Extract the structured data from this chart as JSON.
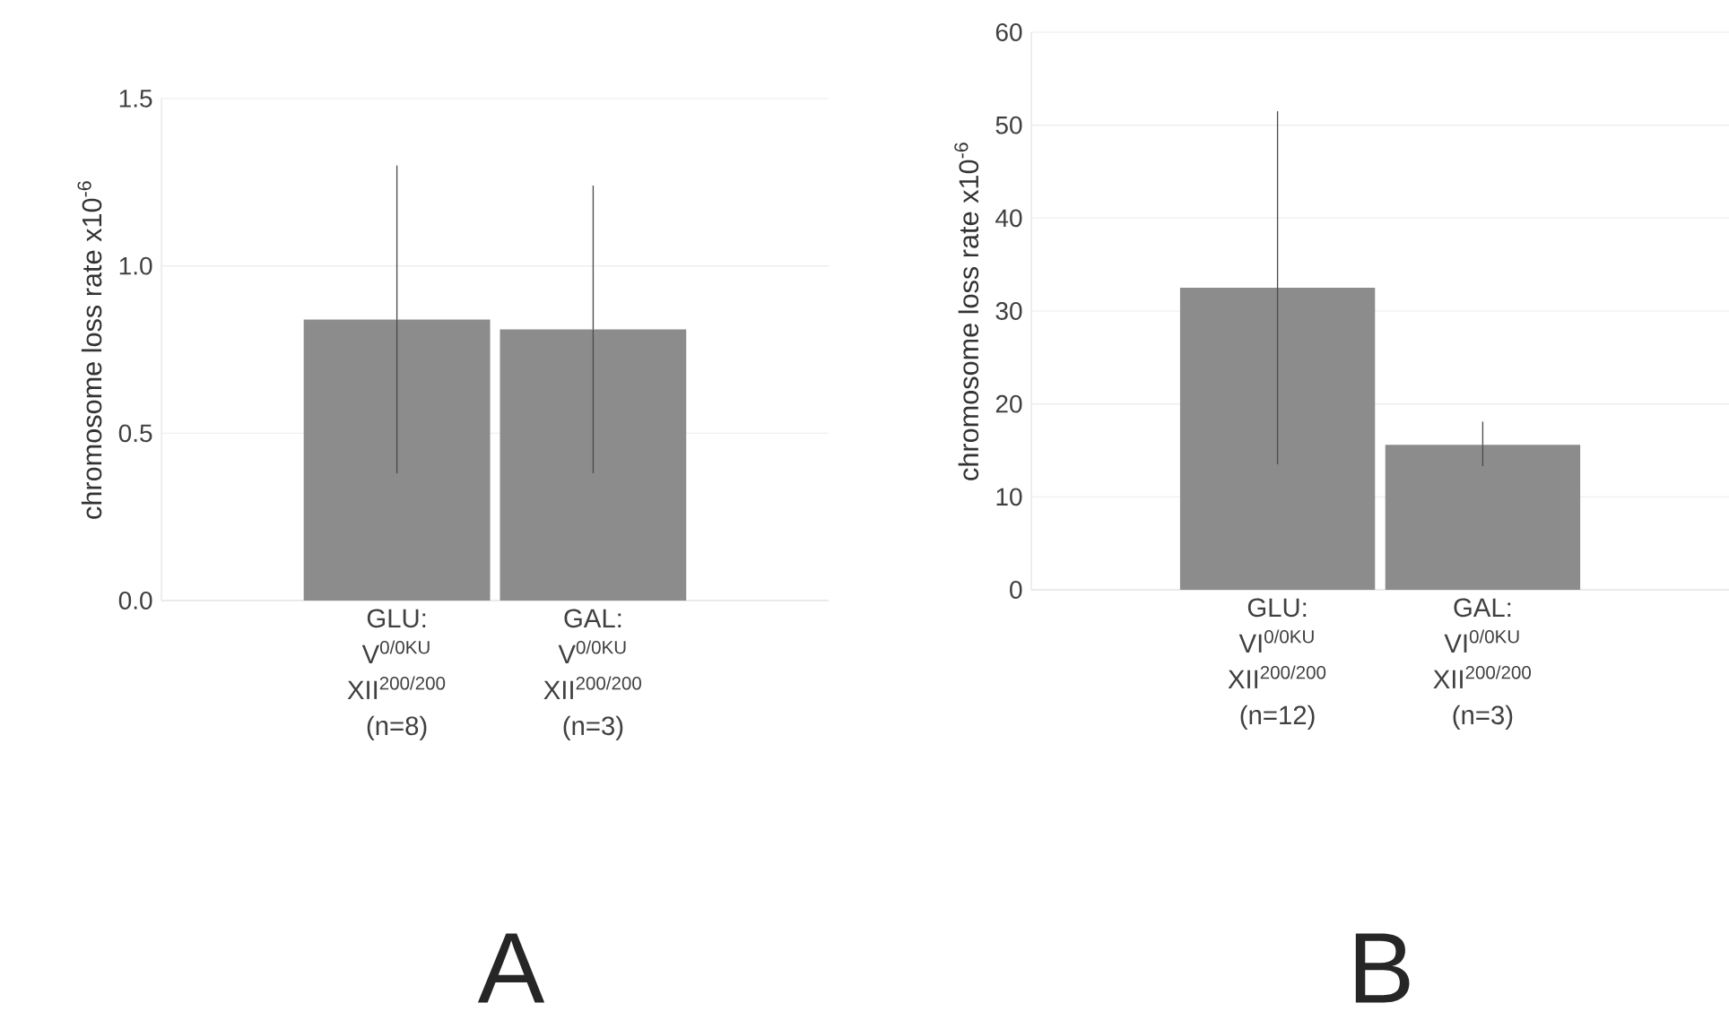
{
  "chart_data": [
    {
      "type": "bar",
      "categories": [
        "GLU: V$^{0/0KU}$ XII$^{200/200}$ (n=8)",
        "GAL: V$^{0/0KU}$ XII$^{200/200}$ (n=3)"
      ],
      "values": [
        0.84,
        0.81
      ],
      "errors": [
        [
          0.38,
          1.3
        ],
        [
          0.38,
          1.24
        ]
      ],
      "color": "#8c8c8c",
      "ylabel": "chromosome loss rate x10$^{-6}$",
      "ylim": [
        0,
        1.5
      ],
      "yticks": [
        {
          "value": 0,
          "label": "0.0"
        },
        {
          "value": 0.5,
          "label": "0.5"
        },
        {
          "value": 1,
          "label": "1.0"
        },
        {
          "value": 1.5,
          "label": "1.5"
        }
      ],
      "grid": "y",
      "annotations": [
        "A"
      ]
    },
    {
      "type": "bar",
      "categories": [
        "GLU: VI$^{0/0KU}$ XII$^{200/200}$ (n=12)",
        "GAL: VI$^{0/0KU}$ XII$^{200/200}$ (n=3)"
      ],
      "values": [
        32.5,
        15.6
      ],
      "errors": [
        [
          13.5,
          51.5
        ],
        [
          13.3,
          18.1
        ]
      ],
      "color": "#8c8c8c",
      "ylabel": "chromosome loss rate x10$^{-6}$",
      "ylim": [
        0,
        60
      ],
      "yticks": [
        0,
        10,
        20,
        30,
        40,
        50,
        60
      ],
      "grid": "y",
      "annotations": [
        "B"
      ]
    }
  ]
}
